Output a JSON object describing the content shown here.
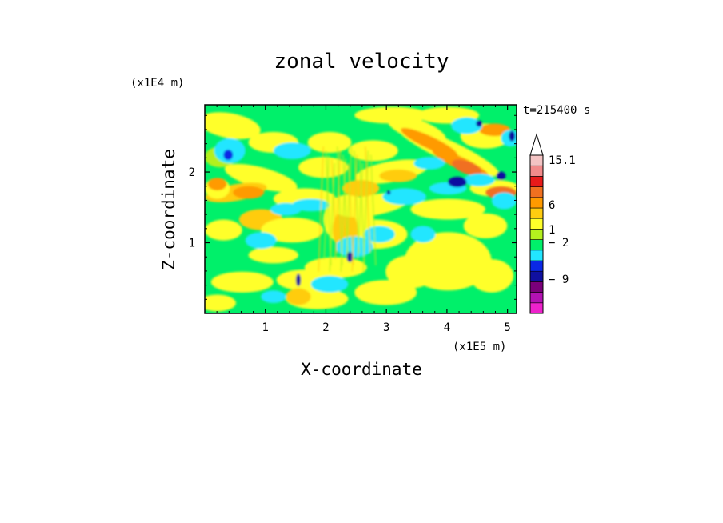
{
  "chart_data": {
    "type": "heatmap",
    "title": "zonal velocity",
    "time_label": "t=215400 s",
    "xlabel": "X-coordinate",
    "ylabel": "Z-coordinate",
    "x_unit": "(x1E5 m)",
    "y_unit": "(x1E4 m)",
    "xlim": [
      0,
      5.15
    ],
    "ylim": [
      0,
      2.95
    ],
    "x_ticks": [
      1,
      2,
      3,
      4,
      5
    ],
    "y_ticks": [
      1,
      2
    ],
    "colorbar": {
      "levels": [
        {
          "color": "#ee22cc"
        },
        {
          "color": "#b312b3"
        },
        {
          "color": "#7a007a"
        },
        {
          "color": "#1010a0"
        },
        {
          "color": "#0a28e6"
        },
        {
          "color": "#22e6ff"
        },
        {
          "color": "#00f06a"
        },
        {
          "color": "#b4f01e"
        },
        {
          "color": "#ffff2a"
        },
        {
          "color": "#ffcc10"
        },
        {
          "color": "#ff9a00"
        },
        {
          "color": "#f07020"
        },
        {
          "color": "#e81a1a"
        },
        {
          "color": "#f28a8a"
        },
        {
          "color": "#f4c4c4"
        }
      ],
      "labels": [
        {
          "value": "15.1"
        },
        {
          "value": "6"
        },
        {
          "value": "1"
        },
        {
          "value": "− 2"
        },
        {
          "value": "− 9"
        }
      ],
      "extend_top": true
    }
  }
}
